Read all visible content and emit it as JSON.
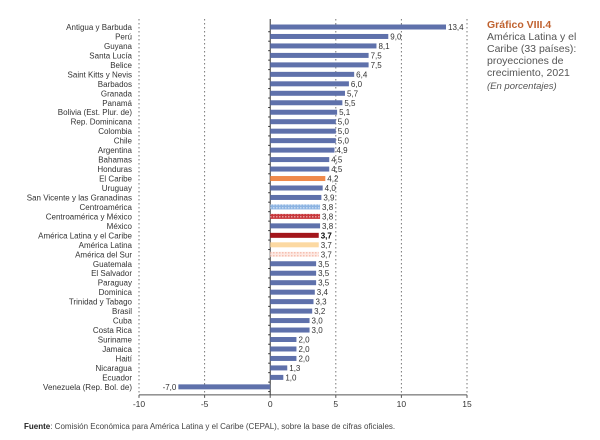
{
  "chart_data": {
    "type": "bar",
    "orientation": "horizontal",
    "title": "Gráfico VIII.4",
    "subtitle": "América Latina y el Caribe (33 países): proyecciones de crecimiento, 2021",
    "unit_note": "(En porcentajes)",
    "xlim": [
      -10,
      15
    ],
    "xticks": [
      "-10",
      "-5",
      "0",
      "5",
      "10",
      "15"
    ],
    "xtick_values": [
      -10,
      -5,
      0,
      5,
      10,
      15
    ],
    "grid": "vertical dotted",
    "categories": [
      "Antigua y Barbuda",
      "Perú",
      "Guyana",
      "Santa Lucía",
      "Belice",
      "Saint Kitts y Nevis",
      "Barbados",
      "Granada",
      "Panamá",
      "Bolivia (Est. Plur. de)",
      "Rep. Dominicana",
      "Colombia",
      "Chile",
      "Argentina",
      "Bahamas",
      "Honduras",
      "El Caribe",
      "Uruguay",
      "San Vicente y las Granadinas",
      "Centroamérica",
      "Centroamérica y México",
      "México",
      "América Latina y el Caribe",
      "América Latina",
      "América del Sur",
      "Guatemala",
      "El Salvador",
      "Paraguay",
      "Dominica",
      "Trinidad y Tabago",
      "Brasil",
      "Cuba",
      "Costa Rica",
      "Suriname",
      "Jamaica",
      "Haití",
      "Nicaragua",
      "Ecuador",
      "Venezuela (Rep. Bol. de)"
    ],
    "values": [
      13.4,
      9.0,
      8.1,
      7.5,
      7.5,
      6.4,
      6.0,
      5.7,
      5.5,
      5.1,
      5.0,
      5.0,
      5.0,
      4.9,
      4.5,
      4.5,
      4.2,
      4.0,
      3.9,
      3.8,
      3.8,
      3.8,
      3.7,
      3.7,
      3.7,
      3.5,
      3.5,
      3.5,
      3.4,
      3.3,
      3.2,
      3.0,
      3.0,
      2.0,
      2.0,
      2.0,
      1.3,
      1.0,
      -7.0
    ],
    "labels": [
      "13,4",
      "9,0",
      "8,1",
      "7,5",
      "7,5",
      "6,4",
      "6,0",
      "5,7",
      "5,5",
      "5,1",
      "5,0",
      "5,0",
      "5,0",
      "4,9",
      "4,5",
      "4,5",
      "4,2",
      "4,0",
      "3,9",
      "3,8",
      "3,8",
      "3,8",
      "3,7",
      "3,7",
      "3,7",
      "3,5",
      "3,5",
      "3,5",
      "3,4",
      "3,3",
      "3,2",
      "3,0",
      "3,0",
      "2,0",
      "2,0",
      "2,0",
      "1,3",
      "1,0",
      "-7,0"
    ],
    "colors": {
      "default": "#5f71ab",
      "El Caribe": "#f08a4b",
      "Centroamérica": "#8db4e2",
      "Centroamérica y México": "#c7383c",
      "América Latina y el Caribe": "#a3161b",
      "América Latina": "#fcd9a2",
      "América del Sur": "#f8cfc3"
    },
    "emphasized": "América Latina y el Caribe"
  },
  "source": {
    "label": "Fuente",
    "text": ": Comisión Económica para América Latina y el Caribe (CEPAL), sobre la base de cifras oficiales."
  }
}
